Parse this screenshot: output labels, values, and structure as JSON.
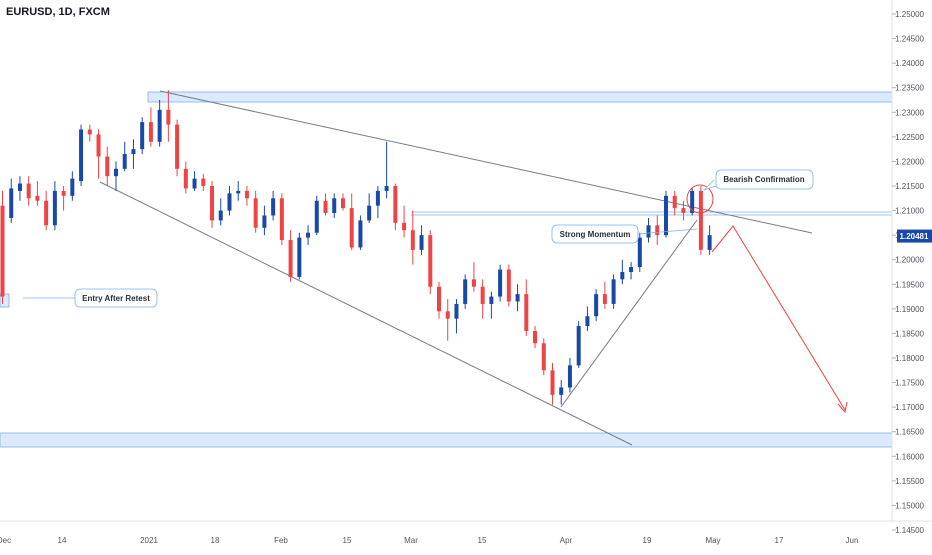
{
  "header": {
    "symbol_title": "EURUSD, 1D, FXCM"
  },
  "colors": {
    "up": "#1848a8",
    "down": "#ef4444",
    "zone_fill": "#dbeafe",
    "zone_stroke": "#7fb1e6",
    "trendline": "#787b86",
    "projection": "#ef4444",
    "price_tag": "#1848a8"
  },
  "current_price": {
    "label": "1.20481",
    "value": 1.20481
  },
  "annotations": {
    "bearish": "Bearish Confirmation",
    "momentum": "Strong Momentum",
    "entry": "Entry After Retest"
  },
  "chart_data": {
    "type": "candlestick",
    "title": "EURUSD, 1D, FXCM",
    "ylim": [
      1.1425,
      1.2525
    ],
    "y_ticks": [
      "1.25000",
      "1.24500",
      "1.24000",
      "1.23500",
      "1.23000",
      "1.22500",
      "1.22000",
      "1.21500",
      "1.21000",
      "1.20500",
      "1.20000",
      "1.19500",
      "1.19000",
      "1.18500",
      "1.18000",
      "1.17500",
      "1.17000",
      "1.16500",
      "1.16000",
      "1.15500",
      "1.15000",
      "1.14500"
    ],
    "x_ticks": [
      "Dec",
      "14",
      "2021",
      "18",
      "Feb",
      "15",
      "Mar",
      "15",
      "Apr",
      "19",
      "May",
      "17",
      "Jun"
    ],
    "candles": [
      [
        1.211,
        1.214,
        1.191,
        1.1925
      ],
      [
        1.2085,
        1.2165,
        1.2075,
        1.2145
      ],
      [
        1.214,
        1.217,
        1.212,
        1.2155
      ],
      [
        1.2155,
        1.217,
        1.211,
        1.2125
      ],
      [
        1.213,
        1.216,
        1.211,
        1.212
      ],
      [
        1.212,
        1.214,
        1.206,
        1.207
      ],
      [
        1.207,
        1.216,
        1.206,
        1.214
      ],
      [
        1.214,
        1.215,
        1.21,
        1.213
      ],
      [
        1.213,
        1.218,
        1.212,
        1.2165
      ],
      [
        1.216,
        1.2275,
        1.215,
        1.2265
      ],
      [
        1.2265,
        1.2275,
        1.224,
        1.2255
      ],
      [
        1.2255,
        1.2265,
        1.2165,
        1.221
      ],
      [
        1.221,
        1.223,
        1.215,
        1.217
      ],
      [
        1.217,
        1.22,
        1.214,
        1.2185
      ],
      [
        1.2185,
        1.224,
        1.218,
        1.2215
      ],
      [
        1.2215,
        1.2245,
        1.2185,
        1.2225
      ],
      [
        1.2225,
        1.229,
        1.2215,
        1.228
      ],
      [
        1.228,
        1.231,
        1.223,
        1.224
      ],
      [
        1.224,
        1.2325,
        1.223,
        1.2305
      ],
      [
        1.2305,
        1.2345,
        1.224,
        1.2275
      ],
      [
        1.2275,
        1.2285,
        1.217,
        1.2185
      ],
      [
        1.2185,
        1.22,
        1.2135,
        1.2145
      ],
      [
        1.2145,
        1.218,
        1.214,
        1.2165
      ],
      [
        1.2165,
        1.2175,
        1.214,
        1.215
      ],
      [
        1.215,
        1.216,
        1.2065,
        1.208
      ],
      [
        1.208,
        1.2125,
        1.207,
        1.21
      ],
      [
        1.21,
        1.215,
        1.209,
        1.2135
      ],
      [
        1.2135,
        1.216,
        1.212,
        1.214
      ],
      [
        1.214,
        1.215,
        1.211,
        1.2125
      ],
      [
        1.2125,
        1.214,
        1.2055,
        1.2065
      ],
      [
        1.2065,
        1.211,
        1.205,
        1.209
      ],
      [
        1.209,
        1.214,
        1.208,
        1.2125
      ],
      [
        1.2125,
        1.2135,
        1.203,
        1.204
      ],
      [
        1.204,
        1.206,
        1.1955,
        1.1965
      ],
      [
        1.1965,
        1.2055,
        1.196,
        1.2045
      ],
      [
        1.2045,
        1.207,
        1.203,
        1.2055
      ],
      [
        1.2055,
        1.213,
        1.205,
        1.212
      ],
      [
        1.212,
        1.2135,
        1.209,
        1.2095
      ],
      [
        1.2095,
        1.2135,
        1.2085,
        1.2125
      ],
      [
        1.2125,
        1.2135,
        1.21,
        1.2105
      ],
      [
        1.2105,
        1.2135,
        1.202,
        1.2025
      ],
      [
        1.2025,
        1.209,
        1.202,
        1.208
      ],
      [
        1.208,
        1.2135,
        1.2075,
        1.211
      ],
      [
        1.211,
        1.215,
        1.2085,
        1.214
      ],
      [
        1.214,
        1.224,
        1.2125,
        1.215
      ],
      [
        1.215,
        1.2155,
        1.206,
        1.2075
      ],
      [
        1.2075,
        1.211,
        1.2045,
        1.206
      ],
      [
        1.206,
        1.21,
        1.199,
        1.202
      ],
      [
        1.202,
        1.207,
        1.201,
        1.205
      ],
      [
        1.205,
        1.206,
        1.193,
        1.1945
      ],
      [
        1.1945,
        1.1955,
        1.188,
        1.1895
      ],
      [
        1.1895,
        1.192,
        1.1835,
        1.188
      ],
      [
        1.188,
        1.192,
        1.185,
        1.191
      ],
      [
        1.191,
        1.197,
        1.19,
        1.196
      ],
      [
        1.196,
        1.1995,
        1.1935,
        1.1945
      ],
      [
        1.1945,
        1.196,
        1.188,
        1.191
      ],
      [
        1.191,
        1.1935,
        1.188,
        1.1925
      ],
      [
        1.1925,
        1.199,
        1.1915,
        1.198
      ],
      [
        1.198,
        1.199,
        1.1905,
        1.1915
      ],
      [
        1.1915,
        1.195,
        1.1895,
        1.193
      ],
      [
        1.193,
        1.196,
        1.1845,
        1.1855
      ],
      [
        1.1855,
        1.1865,
        1.182,
        1.183
      ],
      [
        1.183,
        1.184,
        1.1765,
        1.1775
      ],
      [
        1.1775,
        1.179,
        1.1705,
        1.1725
      ],
      [
        1.1725,
        1.1755,
        1.1705,
        1.174
      ],
      [
        1.174,
        1.18,
        1.173,
        1.1785
      ],
      [
        1.1785,
        1.1875,
        1.178,
        1.1865
      ],
      [
        1.1865,
        1.1905,
        1.1855,
        1.1885
      ],
      [
        1.1885,
        1.194,
        1.1875,
        1.193
      ],
      [
        1.193,
        1.1955,
        1.19,
        1.191
      ],
      [
        1.191,
        1.197,
        1.19,
        1.196
      ],
      [
        1.196,
        1.2,
        1.195,
        1.1975
      ],
      [
        1.1975,
        1.1995,
        1.196,
        1.1985
      ],
      [
        1.1985,
        1.2055,
        1.1975,
        1.2045
      ],
      [
        1.2045,
        1.2085,
        1.2035,
        1.207
      ],
      [
        1.207,
        1.209,
        1.203,
        1.205
      ],
      [
        1.205,
        1.214,
        1.2045,
        1.213
      ],
      [
        1.213,
        1.214,
        1.209,
        1.2105
      ],
      [
        1.2105,
        1.212,
        1.208,
        1.2095
      ],
      [
        1.2095,
        1.2145,
        1.209,
        1.214
      ],
      [
        1.214,
        1.215,
        1.201,
        1.202
      ],
      [
        1.202,
        1.207,
        1.201,
        1.205
      ]
    ]
  }
}
